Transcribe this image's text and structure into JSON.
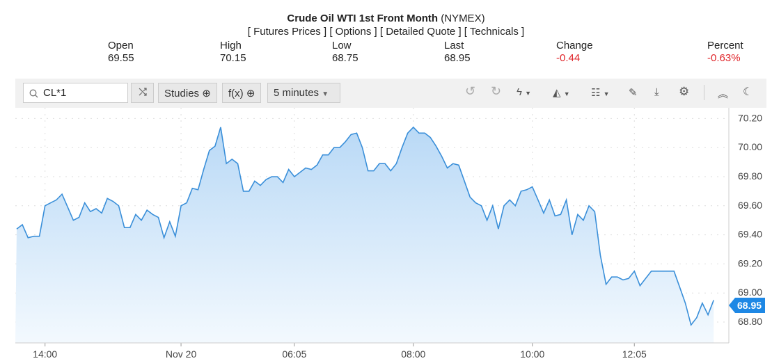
{
  "header": {
    "title_bold": "Crude Oil WTI 1st Front Month",
    "title_exchange": "(NYMEX)",
    "links": [
      "[ Futures Prices ]",
      "[ Options ]",
      "[ Detailed Quote ]",
      "[ Technicals ]"
    ]
  },
  "stats": [
    {
      "label": "Open",
      "value": "69.55"
    },
    {
      "label": "High",
      "value": "70.15"
    },
    {
      "label": "Low",
      "value": "68.75"
    },
    {
      "label": "Last",
      "value": "68.95"
    },
    {
      "label": "Change",
      "value": "-0.44"
    },
    {
      "label": "Percent",
      "value": "-0.63%"
    }
  ],
  "toolbar": {
    "symbol": "CL*1",
    "studies": "Studies",
    "fx": "f(x)",
    "interval": "5 minutes",
    "icons": [
      "undo-icon",
      "redo-icon",
      "lightning-icon",
      "chart-type-icon",
      "layout-icon",
      "pencil-icon",
      "download-icon",
      "gear-icon",
      "collapse-icon",
      "moon-icon"
    ]
  },
  "colors": {
    "line": "#3a8fd9",
    "negative": "#e0262b",
    "tag": "#1e88e5"
  },
  "chart_data": {
    "type": "area",
    "title": "",
    "xlabel": "",
    "ylabel": "",
    "ylim": [
      68.7,
      70.25
    ],
    "y_ticks": [
      "70.20",
      "70.00",
      "69.80",
      "69.60",
      "69.40",
      "69.20",
      "69.00",
      "68.80"
    ],
    "x_ticks": [
      {
        "label": "14:00",
        "index": 5
      },
      {
        "label": "Nov 20",
        "index": 29
      },
      {
        "label": "06:05",
        "index": 49
      },
      {
        "label": "08:00",
        "index": 70
      },
      {
        "label": "10:00",
        "index": 91
      },
      {
        "label": "12:05",
        "index": 109
      }
    ],
    "grid": true,
    "last_value": "68.95",
    "values": [
      69.44,
      69.47,
      69.38,
      69.39,
      69.39,
      69.6,
      69.62,
      69.64,
      69.68,
      69.59,
      69.5,
      69.52,
      69.62,
      69.56,
      69.58,
      69.55,
      69.65,
      69.63,
      69.6,
      69.45,
      69.45,
      69.54,
      69.5,
      69.57,
      69.54,
      69.52,
      69.38,
      69.49,
      69.39,
      69.6,
      69.62,
      69.72,
      69.71,
      69.85,
      69.98,
      70.01,
      70.14,
      69.89,
      69.92,
      69.89,
      69.7,
      69.7,
      69.77,
      69.74,
      69.78,
      69.8,
      69.8,
      69.76,
      69.85,
      69.8,
      69.83,
      69.86,
      69.85,
      69.88,
      69.95,
      69.95,
      70.0,
      70.0,
      70.04,
      70.09,
      70.1,
      70.0,
      69.84,
      69.84,
      69.89,
      69.89,
      69.84,
      69.89,
      70.0,
      70.1,
      70.14,
      70.1,
      70.1,
      70.07,
      70.01,
      69.94,
      69.86,
      69.89,
      69.88,
      69.77,
      69.66,
      69.62,
      69.6,
      69.5,
      69.6,
      69.44,
      69.6,
      69.64,
      69.6,
      69.7,
      69.71,
      69.73,
      69.64,
      69.55,
      69.64,
      69.53,
      69.54,
      69.64,
      69.4,
      69.54,
      69.5,
      69.6,
      69.56,
      69.26,
      69.06,
      69.11,
      69.11,
      69.09,
      69.1,
      69.15,
      69.05,
      69.1,
      69.15,
      69.15,
      69.15,
      69.15,
      69.15,
      69.04,
      68.93,
      68.78,
      68.83,
      68.93,
      68.85,
      68.95
    ]
  }
}
